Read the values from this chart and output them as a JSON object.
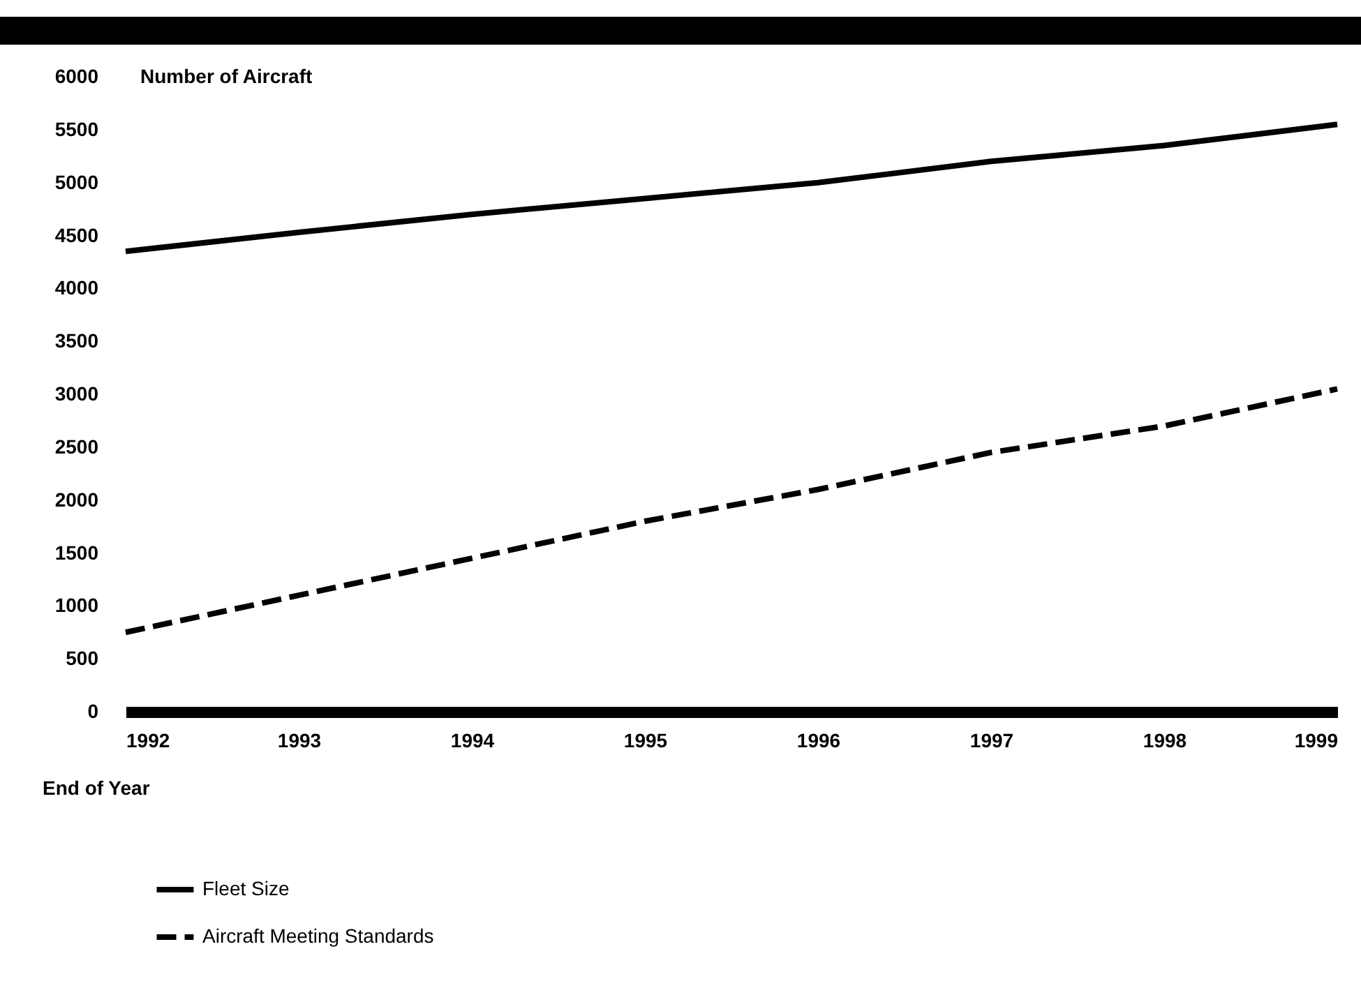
{
  "chart_data": {
    "type": "line",
    "ylabel": "Number of Aircraft",
    "xlabel": "End of Year",
    "x": [
      1992,
      1993,
      1994,
      1995,
      1996,
      1997,
      1998,
      1999
    ],
    "series": [
      {
        "name": "Fleet Size",
        "color": "#000000",
        "line_style": "solid",
        "values": [
          4350,
          4530,
          4700,
          4850,
          5000,
          5200,
          5350,
          5550
        ]
      },
      {
        "name": "Aircraft Meeting Standards",
        "color": "#000000",
        "line_style": "dashed",
        "values": [
          750,
          1100,
          1450,
          1800,
          2100,
          2450,
          2700,
          3050
        ]
      }
    ],
    "xlim": [
      1992,
      1999
    ],
    "xticks": [
      1992,
      1993,
      1994,
      1995,
      1996,
      1997,
      1998,
      1999
    ],
    "ylim": [
      0,
      6000
    ],
    "yticks": [
      0,
      500,
      1000,
      1500,
      2000,
      2500,
      3000,
      3500,
      4000,
      4500,
      5000,
      5500,
      6000
    ],
    "grid": false,
    "legend": "bottom left",
    "marker": "none"
  }
}
